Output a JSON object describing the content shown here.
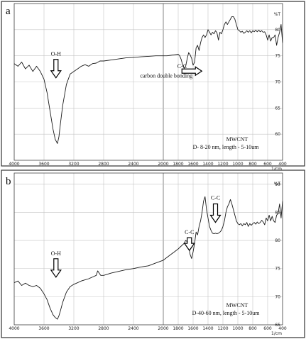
{
  "chart_data": [
    {
      "type": "line",
      "panel_label": "a",
      "ylabel": "%T",
      "xunit": "1/cm",
      "xlim": [
        4000,
        400
      ],
      "ylim": [
        55,
        85
      ],
      "x_ticks": [
        4000,
        3600,
        3200,
        2800,
        2400,
        2000,
        1800,
        1600,
        1400,
        1200,
        1000,
        800,
        600,
        400
      ],
      "y_ticks": [
        60,
        65,
        70,
        75,
        80
      ],
      "grid": true,
      "sample_lines": [
        "MWCNT",
        "D- 8-20 nm, length - 5-10um"
      ],
      "annotations": [
        {
          "label": "O-H",
          "x": 3440,
          "y": 73.5
        },
        {
          "label": "C-C",
          "x": 1750,
          "y": 71.8
        },
        {
          "label": "carbon double bonding",
          "x": 1960,
          "y": 70.8
        }
      ],
      "series": [
        {
          "x": [
            4000,
            3950,
            3900,
            3850,
            3800,
            3750,
            3700,
            3650,
            3600,
            3560,
            3520,
            3480,
            3450,
            3420,
            3400,
            3380,
            3350,
            3300,
            3250,
            3200,
            3150,
            3100,
            3050,
            3000,
            2950,
            2900,
            2850,
            2800,
            2700,
            2600,
            2500,
            2400,
            2300,
            2200,
            2100,
            2000,
            1950,
            1900,
            1850,
            1800,
            1780,
            1760,
            1740,
            1720,
            1700,
            1680,
            1660,
            1640,
            1620,
            1600,
            1580,
            1560,
            1540,
            1520,
            1500,
            1480,
            1460,
            1440,
            1420,
            1400,
            1380,
            1360,
            1340,
            1320,
            1300,
            1280,
            1260,
            1240,
            1220,
            1200,
            1180,
            1160,
            1140,
            1120,
            1100,
            1080,
            1060,
            1040,
            1020,
            1000,
            980,
            960,
            940,
            920,
            900,
            880,
            860,
            840,
            820,
            800,
            780,
            760,
            740,
            720,
            700,
            680,
            660,
            640,
            620,
            600,
            580,
            560,
            540,
            520,
            500,
            480,
            460,
            440,
            420,
            400
          ],
          "y": [
            73.5,
            73.0,
            73.8,
            72.5,
            73.2,
            72.0,
            73.0,
            72.0,
            70.5,
            68.0,
            64.5,
            61.0,
            59.0,
            58.2,
            59.5,
            62.0,
            65.5,
            69.5,
            71.5,
            72.0,
            72.5,
            73.0,
            73.3,
            73.0,
            73.5,
            73.6,
            74.0,
            74.0,
            74.2,
            74.4,
            74.6,
            74.7,
            74.8,
            74.9,
            75.0,
            75.0,
            75.0,
            75.1,
            75.2,
            75.3,
            75.0,
            74.3,
            73.2,
            72.6,
            73.0,
            74.4,
            75.6,
            75.2,
            74.5,
            73.2,
            73.8,
            76.5,
            77.0,
            76.0,
            77.5,
            78.5,
            79.0,
            78.5,
            79.0,
            80.0,
            79.5,
            79.0,
            79.5,
            79.2,
            79.8,
            79.4,
            78.0,
            79.5,
            79.2,
            80.0,
            81.0,
            81.5,
            81.0,
            81.5,
            82.0,
            82.5,
            82.5,
            82.0,
            81.0,
            80.0,
            79.8,
            79.5,
            79.7,
            79.3,
            79.5,
            79.8,
            79.5,
            79.8,
            79.4,
            79.8,
            79.6,
            79.9,
            79.6,
            79.9,
            79.6,
            79.8,
            79.5,
            79.6,
            79.0,
            78.0,
            79.0,
            77.8,
            78.5,
            78.5,
            79.0,
            77.0,
            78.5,
            79.5,
            81.0,
            77.5
          ]
        }
      ]
    },
    {
      "type": "line",
      "panel_label": "b",
      "ylabel": "%T",
      "xunit": "1/cm",
      "xlim": [
        4000,
        400
      ],
      "ylim": [
        65,
        92
      ],
      "x_ticks": [
        4000,
        3600,
        3200,
        2800,
        2400,
        2000,
        1800,
        1600,
        1400,
        1200,
        1000,
        800,
        600,
        400
      ],
      "y_ticks": [
        65,
        70,
        75,
        80,
        85,
        90
      ],
      "grid": true,
      "sample_lines": [
        "MWCNT",
        "D-40-60 nm, length - 5-10um"
      ],
      "annotations": [
        {
          "label": "O-H",
          "x": 3440,
          "y": 76.0
        },
        {
          "label": "C-C",
          "x": 1650,
          "y": 80.5
        },
        {
          "label": "C-C",
          "x": 1300,
          "y": 85.5
        }
      ],
      "series": [
        {
          "x": [
            4000,
            3950,
            3900,
            3850,
            3800,
            3750,
            3700,
            3650,
            3600,
            3560,
            3520,
            3480,
            3450,
            3420,
            3400,
            3380,
            3350,
            3300,
            3250,
            3200,
            3150,
            3100,
            3050,
            3000,
            2950,
            2900,
            2880,
            2860,
            2840,
            2800,
            2700,
            2600,
            2500,
            2400,
            2300,
            2200,
            2100,
            2000,
            1950,
            1900,
            1850,
            1800,
            1760,
            1720,
            1700,
            1680,
            1660,
            1640,
            1620,
            1600,
            1580,
            1560,
            1540,
            1520,
            1500,
            1480,
            1460,
            1440,
            1420,
            1400,
            1380,
            1360,
            1340,
            1320,
            1300,
            1280,
            1260,
            1240,
            1220,
            1200,
            1180,
            1160,
            1140,
            1120,
            1100,
            1080,
            1060,
            1040,
            1020,
            1000,
            980,
            960,
            940,
            920,
            900,
            880,
            860,
            840,
            820,
            800,
            780,
            760,
            740,
            720,
            700,
            680,
            660,
            640,
            620,
            600,
            580,
            560,
            540,
            520,
            500,
            480,
            460,
            440,
            420,
            400
          ],
          "y": [
            72.5,
            72.8,
            72.0,
            72.4,
            72.0,
            71.8,
            72.0,
            71.5,
            70.5,
            69.5,
            68.0,
            66.8,
            66.3,
            66.0,
            66.6,
            67.5,
            69.0,
            70.8,
            71.8,
            72.2,
            72.5,
            72.8,
            73.0,
            73.2,
            73.5,
            73.8,
            74.6,
            74.2,
            73.8,
            73.8,
            74.2,
            74.5,
            74.8,
            75.0,
            75.3,
            75.5,
            76.0,
            76.5,
            77.0,
            77.5,
            78.0,
            78.5,
            79.0,
            79.5,
            80.0,
            79.8,
            79.0,
            77.5,
            76.8,
            78.0,
            79.5,
            81.5,
            81.0,
            82.5,
            83.5,
            85.0,
            87.0,
            87.8,
            85.5,
            84.0,
            82.5,
            81.8,
            81.3,
            81.2,
            81.3,
            81.2,
            81.3,
            81.5,
            81.8,
            82.5,
            83.5,
            85.0,
            86.0,
            86.5,
            87.3,
            86.5,
            85.5,
            84.5,
            83.5,
            83.0,
            82.8,
            83.0,
            82.6,
            83.0,
            82.8,
            83.2,
            82.5,
            83.0,
            82.7,
            83.0,
            83.2,
            82.9,
            83.3,
            83.0,
            83.2,
            83.6,
            83.3,
            82.8,
            84.0,
            83.5,
            84.5,
            83.5,
            84.3,
            83.5,
            83.2,
            84.5,
            84.8,
            86.5,
            84.0,
            87.0
          ]
        }
      ]
    }
  ]
}
